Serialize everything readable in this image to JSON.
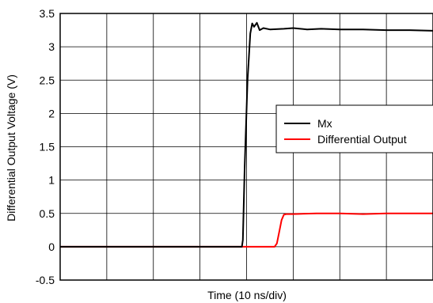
{
  "chart_data": {
    "type": "line",
    "title": "",
    "xlabel": "Time (10 ns/div)",
    "ylabel": "Differential Output Voltage (V)",
    "xlim": [
      0,
      8
    ],
    "ylim": [
      -0.5,
      3.5
    ],
    "y_ticks": [
      -0.5,
      0,
      0.5,
      1,
      1.5,
      2,
      2.5,
      3,
      3.5
    ],
    "y_tick_labels": [
      "-0.5",
      "0",
      "0.5",
      "1",
      "1.5",
      "2",
      "2.5",
      "3",
      "3.5"
    ],
    "x_grid_divisions": 8,
    "grid": true,
    "legend_position": "right",
    "series": [
      {
        "name": "Mx",
        "color": "#000000",
        "x": [
          0,
          3.9,
          3.92,
          3.96,
          4.02,
          4.08,
          4.12,
          4.16,
          4.22,
          4.28,
          4.36,
          4.5,
          4.8,
          5.0,
          5.3,
          5.6,
          6.0,
          6.5,
          7.0,
          7.5,
          8.0
        ],
        "y": [
          0.0,
          0.0,
          0.1,
          1.2,
          2.5,
          3.2,
          3.35,
          3.3,
          3.36,
          3.25,
          3.28,
          3.26,
          3.27,
          3.28,
          3.26,
          3.27,
          3.26,
          3.26,
          3.25,
          3.25,
          3.24
        ]
      },
      {
        "name": "Differential Output",
        "color": "#ff0000",
        "x": [
          0,
          4.0,
          4.6,
          4.65,
          4.7,
          4.75,
          4.8,
          4.85,
          5.0,
          5.5,
          6.0,
          6.5,
          7.0,
          7.5,
          8.0
        ],
        "y": [
          0.0,
          0.0,
          0.0,
          0.05,
          0.22,
          0.4,
          0.48,
          0.49,
          0.49,
          0.5,
          0.5,
          0.49,
          0.5,
          0.5,
          0.5
        ]
      }
    ]
  },
  "legend": {
    "items": [
      {
        "label": "Mx",
        "color": "#000000"
      },
      {
        "label": "Differential Output",
        "color": "#ff0000"
      }
    ]
  }
}
